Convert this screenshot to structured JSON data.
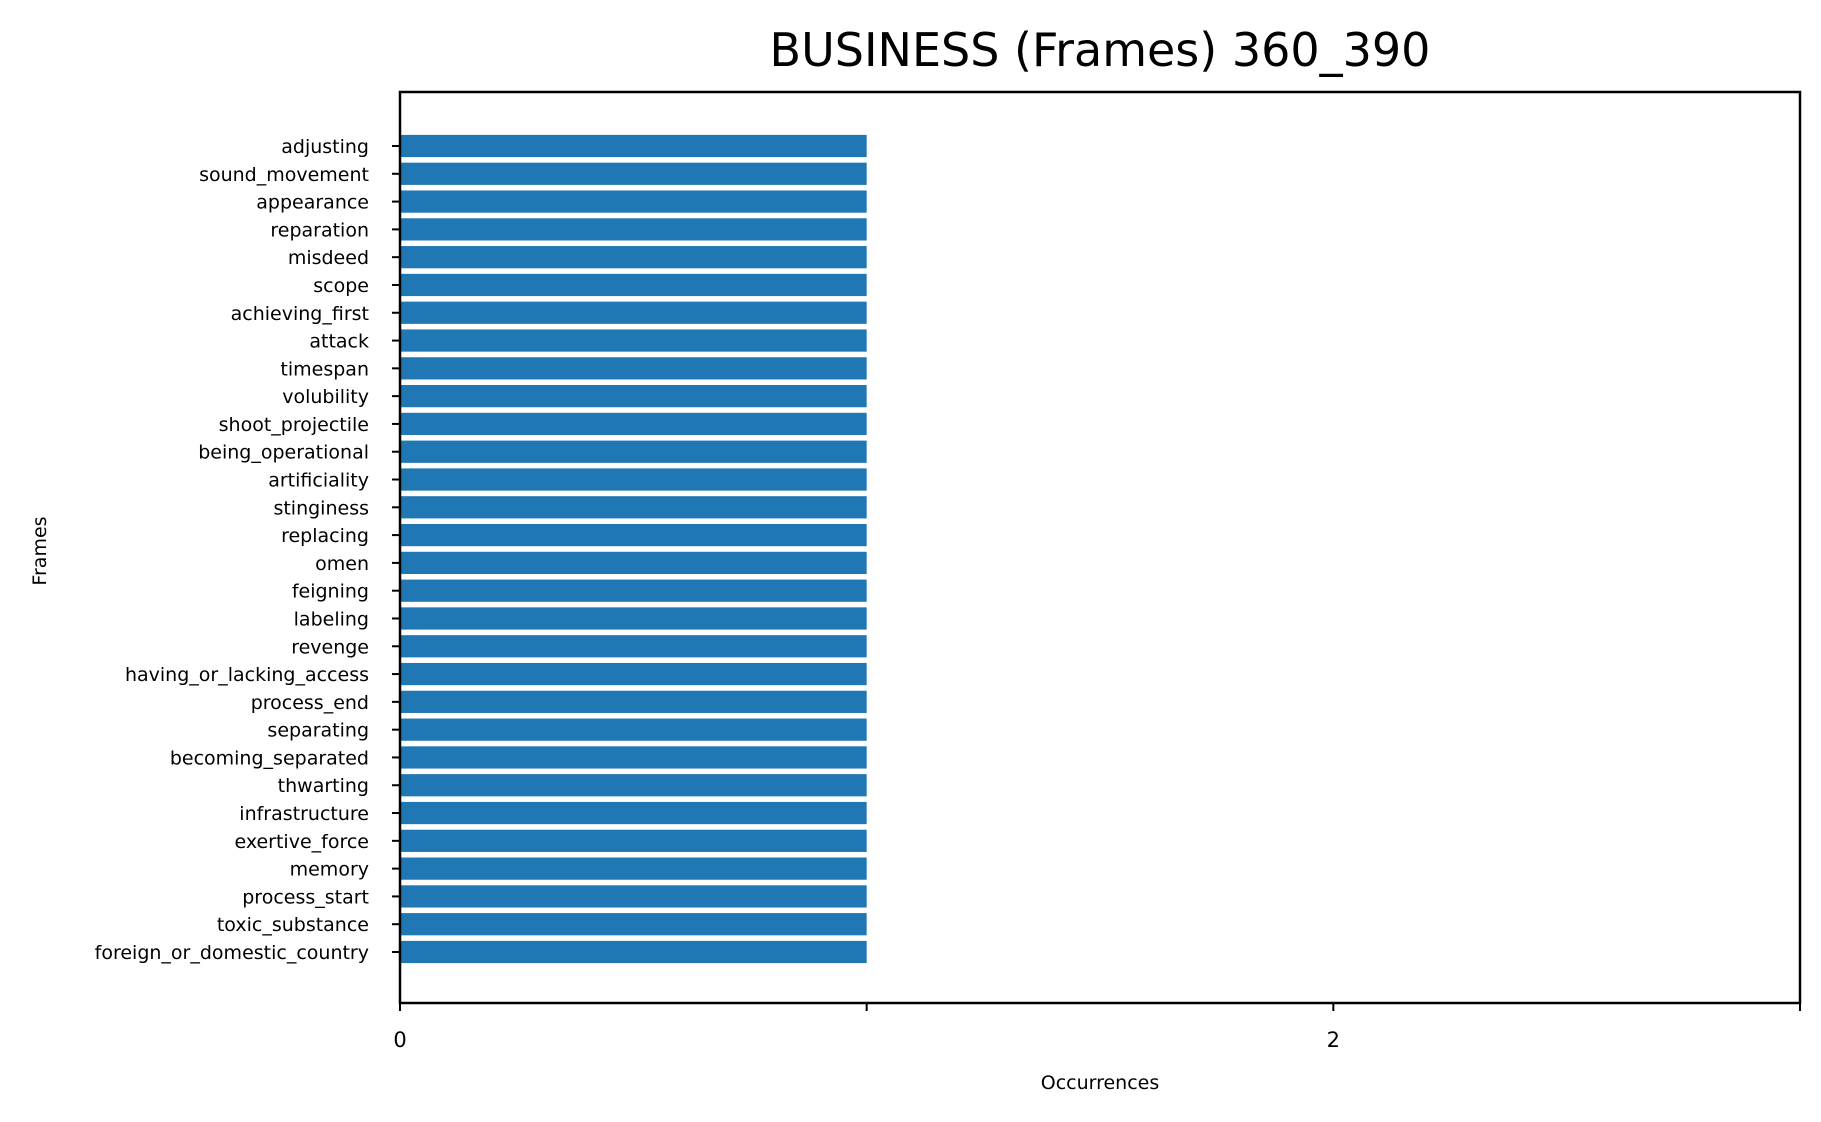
{
  "chart_data": {
    "type": "bar",
    "orientation": "horizontal",
    "title": "BUSINESS (Frames) 360_390",
    "xlabel": "Occurrences",
    "ylabel": "Frames",
    "xlim": [
      0,
      3
    ],
    "xticks": [
      0,
      1,
      2,
      3
    ],
    "xtick_labels": [
      "0",
      "",
      "2",
      ""
    ],
    "grid": false,
    "bar_color": "#1f77b4",
    "categories": [
      "adjusting",
      "sound_movement",
      "appearance",
      "reparation",
      "misdeed",
      "scope",
      "achieving_first",
      "attack",
      "timespan",
      "volubility",
      "shoot_projectile",
      "being_operational",
      "artificiality",
      "stinginess",
      "replacing",
      "omen",
      "feigning",
      "labeling",
      "revenge",
      "having_or_lacking_access",
      "process_end",
      "separating",
      "becoming_separated",
      "thwarting",
      "infrastructure",
      "exertive_force",
      "memory",
      "process_start",
      "toxic_substance",
      "foreign_or_domestic_country"
    ],
    "values": [
      1,
      1,
      1,
      1,
      1,
      1,
      1,
      1,
      1,
      1,
      1,
      1,
      1,
      1,
      1,
      1,
      1,
      1,
      1,
      1,
      1,
      1,
      1,
      1,
      1,
      1,
      1,
      1,
      1,
      1
    ]
  }
}
